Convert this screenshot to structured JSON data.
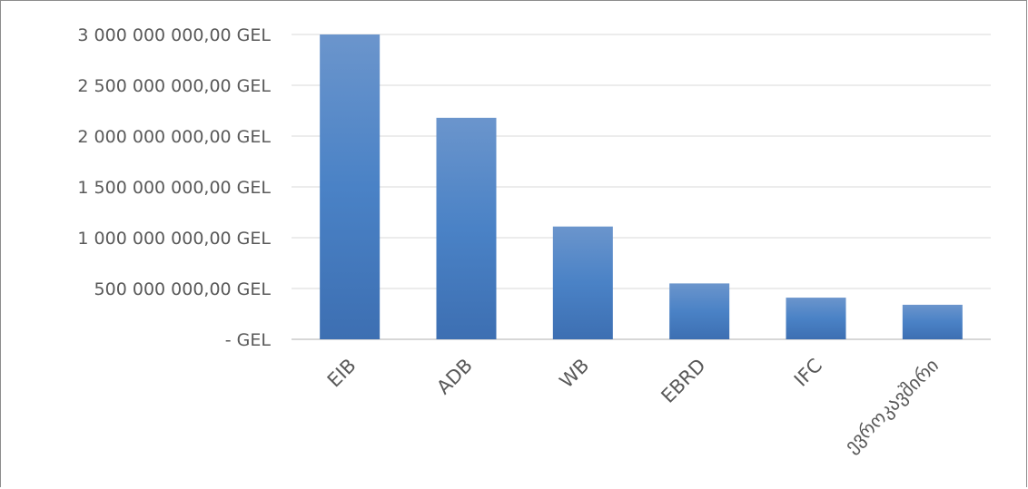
{
  "chart_data": {
    "type": "bar",
    "title": "",
    "xlabel": "",
    "ylabel": "",
    "categories": [
      "EIB",
      "ADB",
      "WB",
      "EBRD",
      "IFC",
      "ევროკავშირი"
    ],
    "values": [
      3000000000,
      2180000000,
      1110000000,
      550000000,
      410000000,
      340000000
    ],
    "ylim": [
      0,
      3000000000
    ],
    "yticks": [
      0,
      500000000,
      1000000000,
      1500000000,
      2000000000,
      2500000000,
      3000000000
    ],
    "ytick_labels": [
      "-   GEL",
      "500 000 000,00 GEL",
      "1 000 000 000,00 GEL",
      "1 500 000 000,00 GEL",
      "2 000 000 000,00 GEL",
      "2 500 000 000,00 GEL",
      "3 000 000 000,00 GEL"
    ],
    "grid": true,
    "legend": "none",
    "colors": {
      "bar_top": "#6b95cc",
      "bar_mid": "#4a82c6",
      "bar_bottom": "#3d6fb2",
      "grid": "#d9d9d9",
      "text": "#595959"
    }
  }
}
